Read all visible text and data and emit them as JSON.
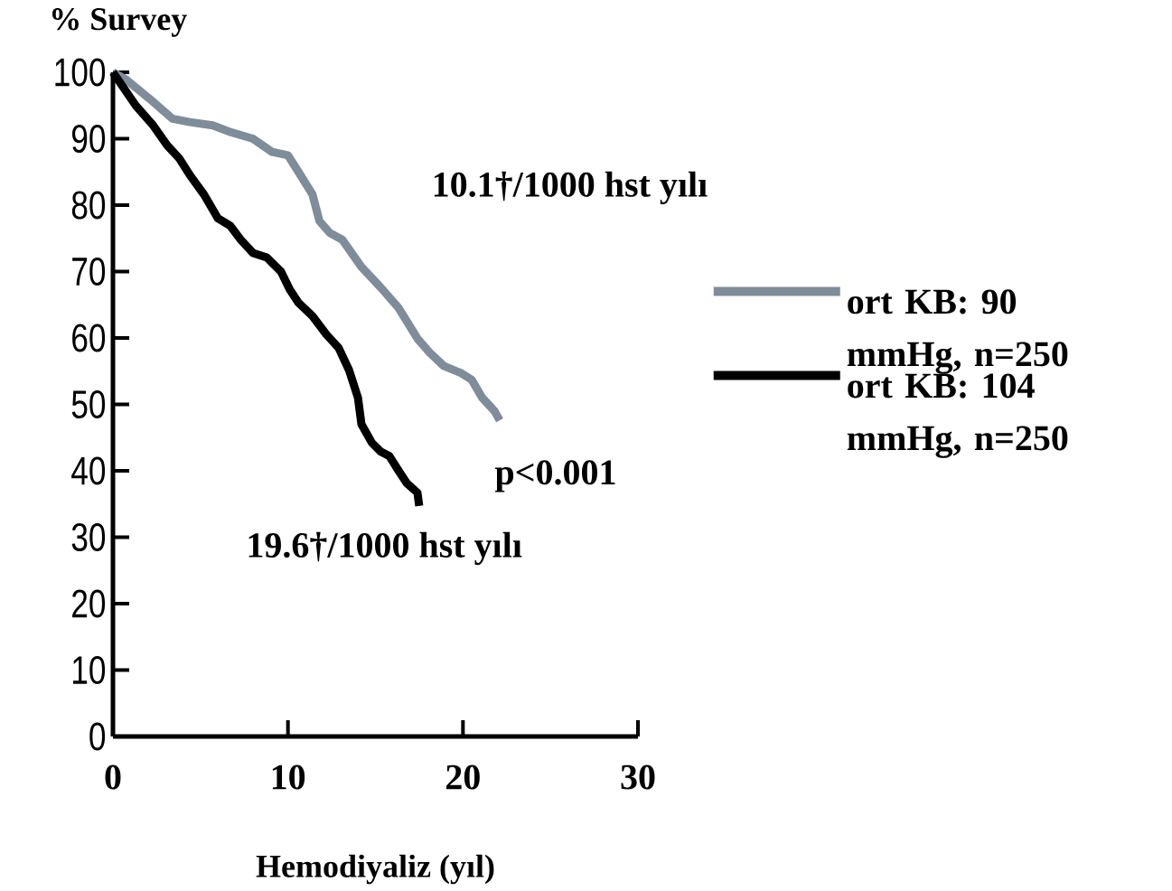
{
  "chart_data": {
    "type": "line",
    "ylabel": "% Survey",
    "xlabel": "Hemodiyaliz (yıl)",
    "xlim": [
      0,
      30
    ],
    "ylim": [
      0,
      100
    ],
    "xticks": [
      0,
      10,
      20,
      30
    ],
    "yticks": [
      0,
      10,
      20,
      30,
      40,
      50,
      60,
      70,
      80,
      90,
      100
    ],
    "grid": false,
    "legend": "right",
    "marker": "none",
    "line_style": "solid",
    "series": [
      {
        "name": "ort KB: 90 mmHg, n=250",
        "color": "#7f8c99",
        "x": [
          0,
          0.7,
          2.1,
          3.4,
          4.4,
          5.7,
          6.7,
          8,
          9.1,
          10,
          10.6,
          11.4,
          11.8,
          12.4,
          13.1,
          14.2,
          15.3,
          16.3,
          17.4,
          18.1,
          18.9,
          19.9,
          20.5,
          21.1,
          21.8,
          22.1
        ],
        "values": [
          100,
          99,
          96,
          93,
          92.5,
          92,
          91,
          90,
          88,
          87.5,
          85,
          81.6,
          77.6,
          75.8,
          74.8,
          70.7,
          67.6,
          64.6,
          59.9,
          57.8,
          55.8,
          54.7,
          53.7,
          51,
          49,
          47.6
        ]
      },
      {
        "name": "ort KB: 104 mmHg, n=250",
        "color": "#000000",
        "x": [
          0,
          1.3,
          2.3,
          3.1,
          3.8,
          4.4,
          5.2,
          6,
          6.7,
          7.3,
          8,
          8.8,
          9.6,
          10.1,
          10.6,
          11.4,
          12.2,
          12.9,
          13.5,
          14,
          14.2,
          14.8,
          15.3,
          15.8,
          16.3,
          16.8,
          17.4,
          17.5
        ],
        "values": [
          100,
          95,
          92,
          89,
          87,
          84.5,
          81.6,
          78,
          76.9,
          74.8,
          72.8,
          72.1,
          70,
          67.3,
          65.3,
          63.3,
          60.5,
          58.5,
          55.1,
          51,
          47,
          44.2,
          42.9,
          42.2,
          40.1,
          38.1,
          36.7,
          34.7
        ]
      }
    ],
    "annotations": [
      "10.1†/1000 hst yılı",
      "p<0.001",
      "19.6†/1000 hst yılı"
    ]
  }
}
